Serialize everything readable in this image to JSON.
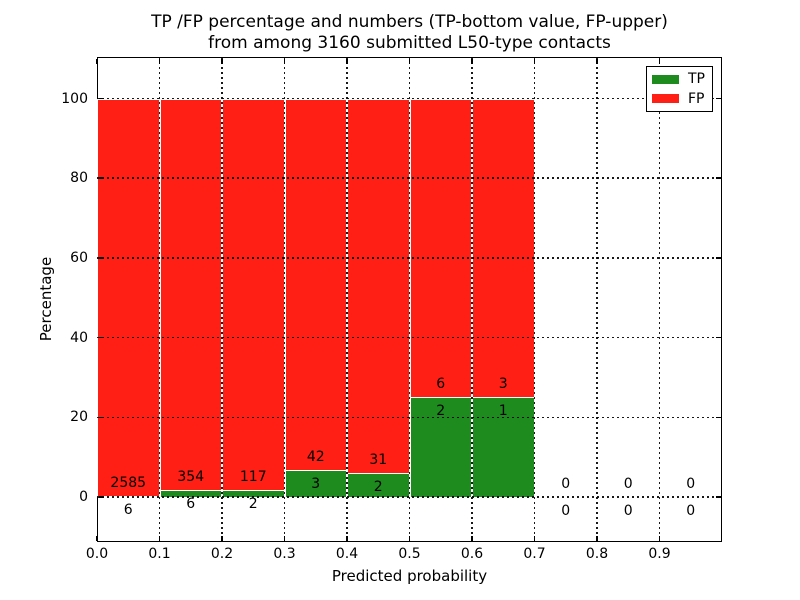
{
  "title": {
    "line1": "TP /FP percentage and numbers (TP-bottom value, FP-upper)",
    "line2": "from among 3160 submitted L50-type contacts"
  },
  "axes": {
    "ylabel": "Percentage",
    "xlabel": "Predicted probability",
    "ytick_labels": [
      "0",
      "20",
      "40",
      "60",
      "80",
      "100"
    ],
    "ytick_values": [
      0,
      20,
      40,
      60,
      80,
      100
    ],
    "xtick_labels": [
      "0.0",
      "0.1",
      "0.2",
      "0.3",
      "0.4",
      "0.5",
      "0.6",
      "0.7",
      "0.8",
      "0.9"
    ],
    "xtick_values": [
      0.0,
      0.1,
      0.2,
      0.3,
      0.4,
      0.5,
      0.6,
      0.7,
      0.8,
      0.9
    ]
  },
  "legend": {
    "items": [
      {
        "label": "TP",
        "color": "#1e8b1e"
      },
      {
        "label": "FP",
        "color": "#ff1f14"
      }
    ]
  },
  "colors": {
    "tp_green": "#1e8b1e",
    "fp_red": "#ff1f14",
    "bar_edge": "#ffffff",
    "grid": "#000000"
  },
  "chart_data": {
    "type": "bar",
    "stacked": true,
    "normalized": "percent",
    "title": "TP /FP percentage and numbers (TP-bottom value, FP-upper) from among 3160 submitted L50-type contacts",
    "xlabel": "Predicted probability",
    "ylabel": "Percentage",
    "xlim": [
      0.0,
      1.0
    ],
    "ylim": [
      -11.5,
      110.5
    ],
    "grid": "dotted, drawn above bars",
    "legend_position": "upper right",
    "total_contacts": 3160,
    "bin_width": 0.1,
    "categories": [
      "0.0-0.1",
      "0.1-0.2",
      "0.2-0.3",
      "0.3-0.4",
      "0.4-0.5",
      "0.5-0.6",
      "0.6-0.7",
      "0.7-0.8",
      "0.8-0.9",
      "0.9-1.0"
    ],
    "series": [
      {
        "name": "TP",
        "values": [
          6,
          6,
          2,
          3,
          2,
          2,
          1,
          0,
          0,
          0
        ]
      },
      {
        "name": "FP",
        "values": [
          2585,
          354,
          117,
          42,
          31,
          6,
          3,
          0,
          0,
          0
        ]
      }
    ],
    "bins": [
      {
        "x0": 0.0,
        "x1": 0.1,
        "tp": 6,
        "fp": 2585,
        "tp_pct": 0.23,
        "fp_pct": 99.77
      },
      {
        "x0": 0.1,
        "x1": 0.2,
        "tp": 6,
        "fp": 354,
        "tp_pct": 1.67,
        "fp_pct": 98.33
      },
      {
        "x0": 0.2,
        "x1": 0.3,
        "tp": 2,
        "fp": 117,
        "tp_pct": 1.68,
        "fp_pct": 98.32
      },
      {
        "x0": 0.3,
        "x1": 0.4,
        "tp": 3,
        "fp": 42,
        "tp_pct": 6.67,
        "fp_pct": 93.33
      },
      {
        "x0": 0.4,
        "x1": 0.5,
        "tp": 2,
        "fp": 31,
        "tp_pct": 6.06,
        "fp_pct": 93.94
      },
      {
        "x0": 0.5,
        "x1": 0.6,
        "tp": 2,
        "fp": 6,
        "tp_pct": 25.0,
        "fp_pct": 75.0
      },
      {
        "x0": 0.6,
        "x1": 0.7,
        "tp": 1,
        "fp": 3,
        "tp_pct": 25.0,
        "fp_pct": 75.0
      },
      {
        "x0": 0.7,
        "x1": 0.8,
        "tp": 0,
        "fp": 0,
        "tp_pct": 0,
        "fp_pct": 0
      },
      {
        "x0": 0.8,
        "x1": 0.9,
        "tp": 0,
        "fp": 0,
        "tp_pct": 0,
        "fp_pct": 0
      },
      {
        "x0": 0.9,
        "x1": 1.0,
        "tp": 0,
        "fp": 0,
        "tp_pct": 0,
        "fp_pct": 0
      }
    ]
  }
}
